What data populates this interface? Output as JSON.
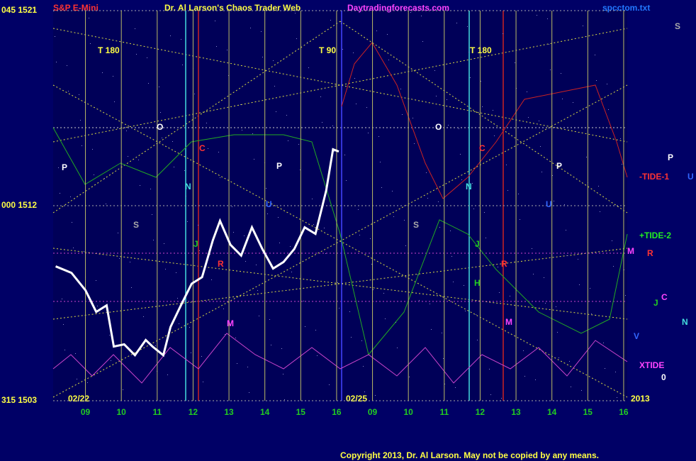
{
  "chart_data": {
    "type": "line",
    "title": "Dr. Al Larson's Chaos Trader Web",
    "instrument": "S&P E-Mini",
    "website": "Daytradingforecasts.com",
    "file": "spcctom.txt",
    "copyright": "Copyright 2013, Dr. Al Larson. May not be copied by any means.",
    "dates": [
      "02/22",
      "02/25",
      "2013"
    ],
    "color": "#ffffff",
    "x": [
      0.17,
      0.61,
      1.0,
      1.3,
      1.59,
      1.79,
      2.08,
      2.38,
      2.68,
      2.87,
      3.17,
      3.37,
      3.66,
      3.96,
      4.25,
      4.55,
      4.75,
      5.04,
      5.34,
      5.64,
      5.93,
      6.23,
      6.52,
      6.82,
      7.11,
      7.41,
      7.71,
      7.9,
      8.06
    ],
    "values": [
      1509.2,
      1508.9,
      1508.1,
      1507.1,
      1507.4,
      1505.5,
      1505.6,
      1505.1,
      1505.8,
      1505.5,
      1505.1,
      1506.4,
      1507.4,
      1508.4,
      1508.7,
      1510.4,
      1511.3,
      1510.2,
      1509.7,
      1511.0,
      1510.0,
      1509.1,
      1509.4,
      1510.0,
      1511.0,
      1510.7,
      1512.7,
      1514.6,
      1514.5
    ],
    "xlim": [
      0.1,
      16.1
    ],
    "xticks": [
      {
        "value": 1,
        "label": "09"
      },
      {
        "value": 2,
        "label": "10"
      },
      {
        "value": 3,
        "label": "11"
      },
      {
        "value": 4,
        "label": "12"
      },
      {
        "value": 5,
        "label": "13"
      },
      {
        "value": 6,
        "label": "14"
      },
      {
        "value": 7,
        "label": "15"
      },
      {
        "value": 8,
        "label": "16"
      },
      {
        "value": 9,
        "label": "09"
      },
      {
        "value": 10,
        "label": "10"
      },
      {
        "value": 11,
        "label": "11"
      },
      {
        "value": 12,
        "label": "12"
      },
      {
        "value": 13,
        "label": "13"
      },
      {
        "value": 14,
        "label": "14"
      },
      {
        "value": 15,
        "label": "15"
      },
      {
        "value": 16,
        "label": "16"
      }
    ],
    "ylim": [
      1503,
      1521
    ],
    "yticks": [
      {
        "value": 1521,
        "label": "045 1521"
      },
      {
        "value": 1512,
        "label": "000 1512"
      },
      {
        "value": 1503,
        "label": "315 1503"
      }
    ],
    "grid": true,
    "annotations": [
      "T 180",
      "T 90",
      "T 180",
      "O",
      "O",
      "C",
      "C",
      "P",
      "P",
      "P",
      "N",
      "N",
      "U",
      "U",
      "S",
      "S",
      "J",
      "J",
      "R",
      "R",
      "H",
      "M",
      "M",
      "S",
      "P",
      "-TIDE-1",
      "U",
      "+TIDE-2",
      "M",
      "R",
      "C",
      "J",
      "N",
      "V",
      "XTIDE",
      "0"
    ]
  }
}
